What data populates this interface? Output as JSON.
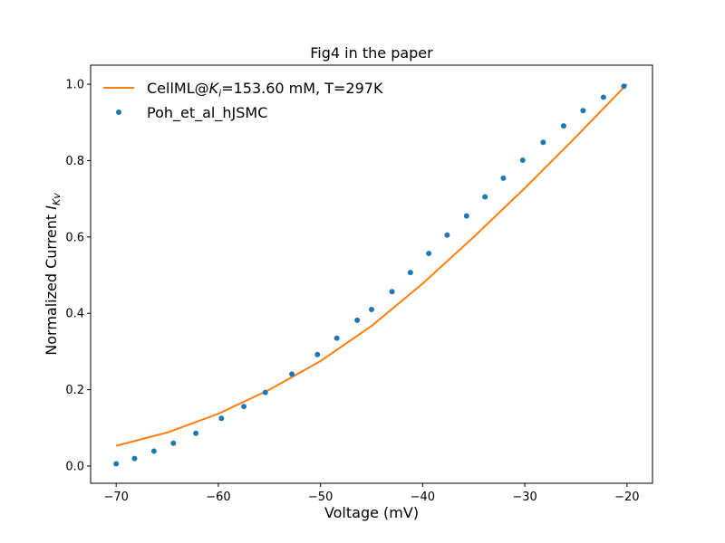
{
  "chart_data": {
    "type": "line",
    "title": "Fig4 in the paper",
    "xlabel": "Voltage (mV)",
    "ylabel_prefix": "Normalized Current ",
    "ylabel_symbol": "I",
    "ylabel_subscript": "Kv",
    "xlim": [
      -72.5,
      -17.5
    ],
    "ylim": [
      -0.045,
      1.05
    ],
    "xticks": [
      -70,
      -60,
      -50,
      -40,
      -30,
      -20
    ],
    "yticks": [
      0.0,
      0.2,
      0.4,
      0.6,
      0.8,
      1.0
    ],
    "xtick_labels": [
      "−70",
      "−60",
      "−50",
      "−40",
      "−30",
      "−20"
    ],
    "ytick_labels": [
      "0.0",
      "0.2",
      "0.4",
      "0.6",
      "0.8",
      "1.0"
    ],
    "grid": false,
    "legend_position": "top-left",
    "series": [
      {
        "name": "CellML@K_i=153.60 mM, T=297K",
        "legend_prefix": "CellML@",
        "legend_symbol": "K",
        "legend_subscript": "i",
        "legend_suffix": "=153.60 mM, T=297K",
        "style": "line",
        "color": "#ff7f0e",
        "x": [
          -70,
          -65,
          -60,
          -55,
          -50,
          -45,
          -40,
          -35,
          -30,
          -25,
          -20
        ],
        "y": [
          0.053,
          0.088,
          0.137,
          0.2,
          0.275,
          0.367,
          0.478,
          0.6,
          0.728,
          0.862,
          1.0
        ]
      },
      {
        "name": "Poh_et_al_hJSMC",
        "legend_text": "Poh_et_al_hJSMC",
        "style": "markers",
        "color": "#1f77b4",
        "x": [
          -70.0,
          -68.2,
          -66.3,
          -64.4,
          -62.2,
          -59.7,
          -57.5,
          -55.4,
          -52.8,
          -50.3,
          -48.4,
          -46.4,
          -45.0,
          -43.0,
          -41.2,
          -39.4,
          -37.6,
          -35.7,
          -33.9,
          -32.1,
          -30.2,
          -28.2,
          -26.2,
          -24.3,
          -22.3,
          -20.3
        ],
        "y": [
          0.006,
          0.02,
          0.039,
          0.06,
          0.086,
          0.125,
          0.156,
          0.193,
          0.241,
          0.292,
          0.335,
          0.382,
          0.41,
          0.457,
          0.507,
          0.557,
          0.605,
          0.655,
          0.705,
          0.754,
          0.801,
          0.848,
          0.891,
          0.931,
          0.966,
          0.995
        ]
      }
    ]
  }
}
